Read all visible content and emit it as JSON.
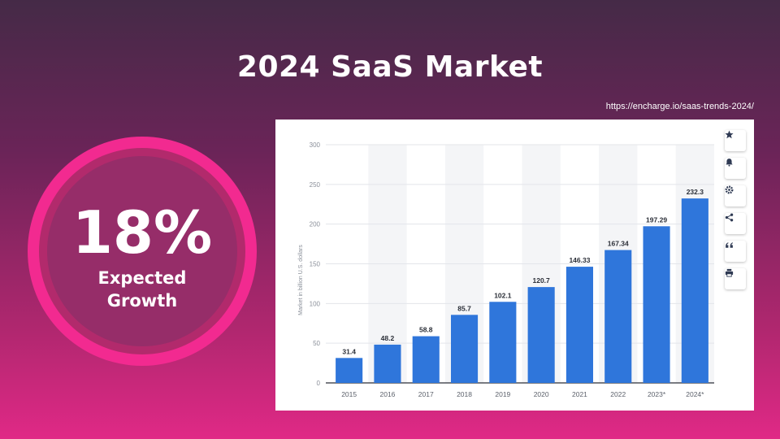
{
  "slide": {
    "title": "2024 SaaS Market",
    "source": "https://encharge.io/saas-trends-2024/"
  },
  "stat": {
    "value": "18%",
    "label_line1": "Expected",
    "label_line2": "Growth"
  },
  "toolbar": {
    "icons": [
      "star-icon",
      "bell-icon",
      "gear-icon",
      "share-icon",
      "quote-icon",
      "print-icon"
    ]
  },
  "colors": {
    "bar": "#2f76db",
    "ring": "#f22a90",
    "accent_bg": "#e02986"
  },
  "chart_data": {
    "type": "bar",
    "categories": [
      "2015",
      "2016",
      "2017",
      "2018",
      "2019",
      "2020",
      "2021",
      "2022",
      "2023*",
      "2024*"
    ],
    "values": [
      31.4,
      48.2,
      58.8,
      85.7,
      102.1,
      120.7,
      146.33,
      167.34,
      197.29,
      232.3
    ],
    "value_labels": [
      "31.4",
      "48.2",
      "58.8",
      "85.7",
      "102.1",
      "120.7",
      "146.33",
      "167.34",
      "197.29",
      "232.3"
    ],
    "ylabel": "Market in billion U.S. dollars",
    "ylim": [
      0,
      300
    ],
    "yticks": [
      0,
      50,
      100,
      150,
      200,
      250,
      300
    ],
    "grid": true
  }
}
